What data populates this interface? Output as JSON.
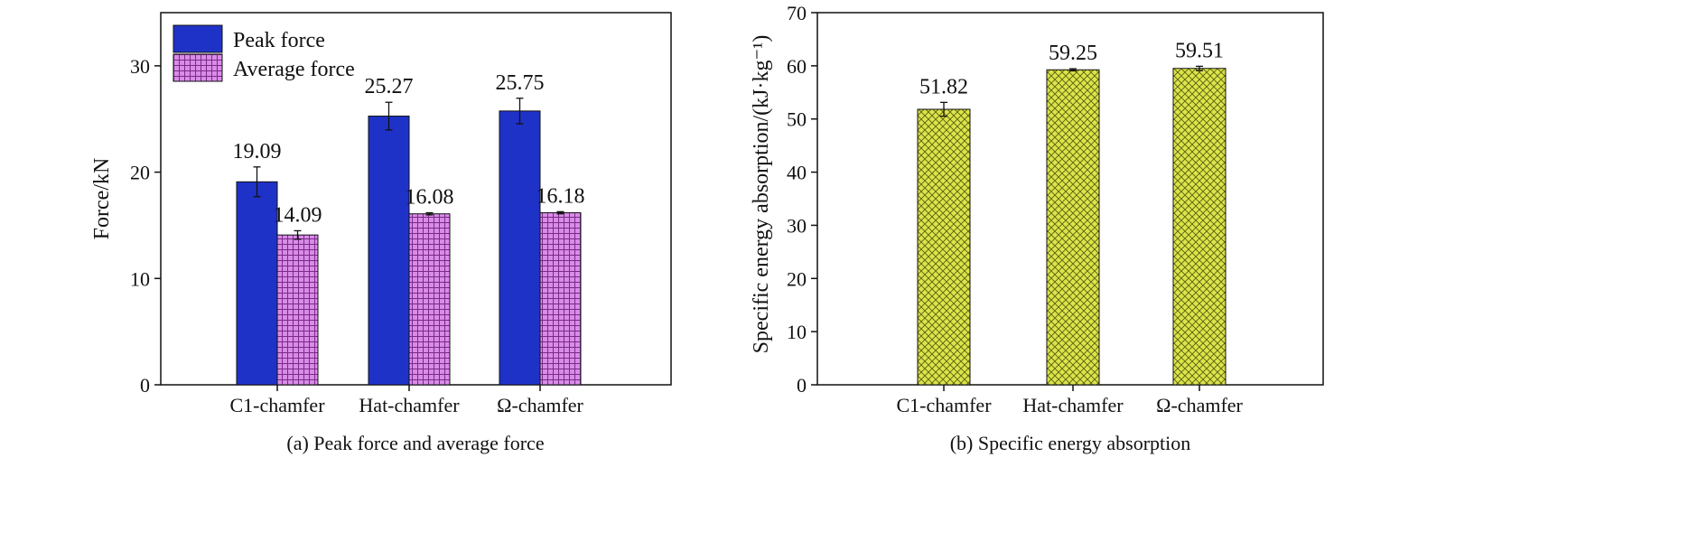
{
  "chart_data": [
    {
      "type": "bar",
      "caption": "(a) Peak force and average force",
      "ylabel": "Force/kN",
      "xlabel": "",
      "ylim": [
        0,
        35
      ],
      "yticks": [
        0,
        10,
        20,
        30
      ],
      "categories": [
        "C1-chamfer",
        "Hat-chamfer",
        "Ω-chamfer"
      ],
      "series": [
        {
          "name": "Peak force",
          "values": [
            19.09,
            25.27,
            25.75
          ],
          "errors": [
            1.4,
            1.3,
            1.2
          ],
          "labels": [
            "19.09",
            "25.27",
            "25.75"
          ],
          "color": "#1f32c8",
          "pattern": "solid"
        },
        {
          "name": "Average force",
          "values": [
            14.09,
            16.08,
            16.18
          ],
          "errors": [
            0.4,
            0.1,
            0.1
          ],
          "labels": [
            "14.09",
            "16.08",
            "16.18"
          ],
          "color": "#d98ce6",
          "pattern": "grid"
        }
      ],
      "legend": "top-left",
      "grid": false
    },
    {
      "type": "bar",
      "caption": "(b) Specific energy absorption",
      "ylabel": "Specific energy absorption/(kJ·kg⁻¹)",
      "xlabel": "",
      "ylim": [
        0,
        70
      ],
      "yticks": [
        0,
        10,
        20,
        30,
        40,
        50,
        60,
        70
      ],
      "categories": [
        "C1-chamfer",
        "Hat-chamfer",
        "Ω-chamfer"
      ],
      "series": [
        {
          "values": [
            51.82,
            59.25,
            59.51
          ],
          "errors": [
            1.3,
            0.2,
            0.4
          ],
          "labels": [
            "51.82",
            "59.25",
            "59.51"
          ],
          "color": "#dde34a",
          "pattern": "crosshatch"
        }
      ],
      "grid": false
    }
  ]
}
